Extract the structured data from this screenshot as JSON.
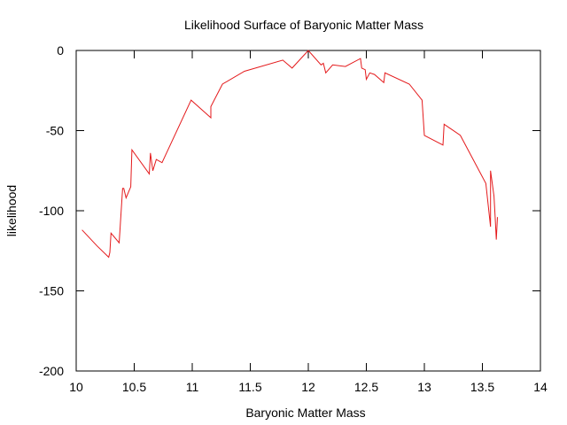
{
  "chart_data": {
    "type": "line",
    "title": "Likelihood Surface of Baryonic Matter Mass",
    "xlabel": "Baryonic Matter Mass",
    "ylabel": "likelihood",
    "xlim": [
      10,
      14
    ],
    "ylim": [
      -200,
      0
    ],
    "xticks": [
      10,
      10.5,
      11,
      11.5,
      12,
      12.5,
      13,
      13.5,
      14
    ],
    "xtick_labels": [
      "10",
      "10.5",
      "11",
      "11.5",
      "12",
      "12.5",
      "13",
      "13.5",
      "14"
    ],
    "yticks": [
      -200,
      -150,
      -100,
      -50,
      0
    ],
    "ytick_labels": [
      "-200",
      "-150",
      "-100",
      "-50",
      "0"
    ],
    "grid": false,
    "legend": "none",
    "series": [
      {
        "color": "#e41a1c",
        "x": [
          10.05,
          10.18,
          10.28,
          10.29,
          10.3,
          10.37,
          10.4,
          10.41,
          10.43,
          10.47,
          10.48,
          10.63,
          10.64,
          10.66,
          10.69,
          10.74,
          10.99,
          11.16,
          11.16,
          11.26,
          11.45,
          11.78,
          11.86,
          12.0,
          12.11,
          12.13,
          12.15,
          12.21,
          12.32,
          12.45,
          12.46,
          12.49,
          12.5,
          12.53,
          12.57,
          12.65,
          12.66,
          12.87,
          12.98,
          13.0,
          13.16,
          13.17,
          13.31,
          13.53,
          13.57,
          13.57,
          13.6,
          13.61,
          13.62,
          13.63
        ],
        "y": [
          -112,
          -122,
          -129,
          -126,
          -114,
          -120,
          -86,
          -86,
          -92,
          -85,
          -62,
          -77,
          -64,
          -75,
          -68,
          -70,
          -31,
          -42,
          -35,
          -21,
          -13,
          -6,
          -11,
          0,
          -9,
          -8,
          -14,
          -9,
          -10,
          -5,
          -11,
          -12,
          -18,
          -14,
          -15,
          -20,
          -14,
          -21,
          -31,
          -53,
          -59,
          -46,
          -53,
          -83,
          -110,
          -75,
          -91,
          -104,
          -118,
          -104
        ]
      }
    ]
  }
}
